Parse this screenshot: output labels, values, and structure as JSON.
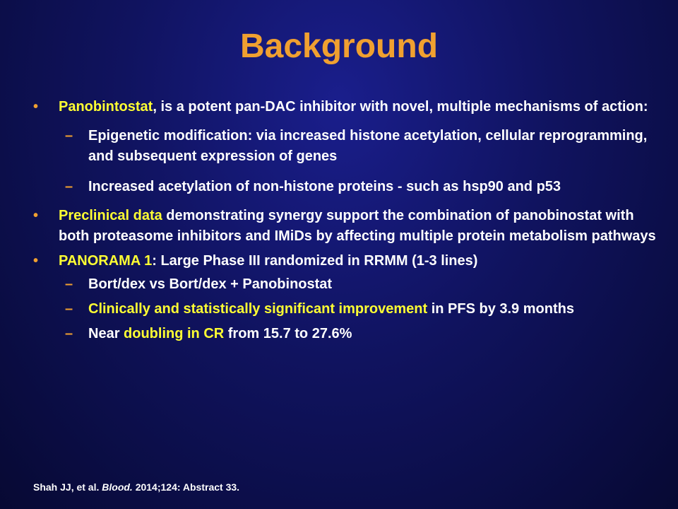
{
  "slide": {
    "title": "Background"
  },
  "bullets": {
    "b1": {
      "highlight": "Panobintostat",
      "text": ", is a potent pan-DAC inhibitor with novel, multiple mechanisms of action:"
    },
    "b1_sub1": "Epigenetic modification:  via increased histone acetylation,  cellular reprogramming, and subsequent expression of genes",
    "b1_sub2": "Increased acetylation of non-histone proteins - such as hsp90 and p53",
    "b2": {
      "highlight": "Preclinical data",
      "text": " demonstrating synergy support the combination of panobinostat with both  proteasome inhibitors and IMiDs by affecting multiple protein metabolism pathways"
    },
    "b3": {
      "highlight": "PANORAMA 1",
      "text": ": Large Phase III randomized  in RRMM (1-3 lines)"
    },
    "b3_sub1": "Bort/dex vs Bort/dex + Panobinostat",
    "b3_sub2": {
      "highlight": "Clinically and statistically significant improvement",
      "text": " in PFS by 3.9 months"
    },
    "b3_sub3": {
      "pre": "Near ",
      "highlight": "doubling in CR",
      "post": " from 15.7 to 27.6%"
    }
  },
  "citation": {
    "authors": "Shah JJ, et al. ",
    "journal": "Blood.",
    "rest": " 2014;124: Abstract 33."
  },
  "colors": {
    "title": "#f0a030",
    "highlight": "#ffff33",
    "bullet": "#f0a030",
    "text": "#ffffff"
  }
}
